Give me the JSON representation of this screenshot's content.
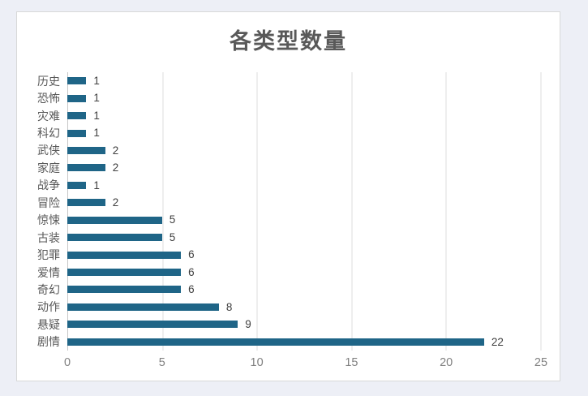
{
  "chart_data": {
    "type": "bar",
    "orientation": "horizontal",
    "title": "各类型数量",
    "categories": [
      "历史",
      "恐怖",
      "灾难",
      "科幻",
      "武侠",
      "家庭",
      "战争",
      "冒险",
      "惊悚",
      "古装",
      "犯罪",
      "爱情",
      "奇幻",
      "动作",
      "悬疑",
      "剧情"
    ],
    "values": [
      1,
      1,
      1,
      1,
      2,
      2,
      1,
      2,
      5,
      5,
      6,
      6,
      6,
      8,
      9,
      22
    ],
    "xlabel": "",
    "ylabel": "",
    "xlim": [
      0,
      25
    ],
    "xticks": [
      0,
      5,
      10,
      15,
      20,
      25
    ],
    "grid": "vertical-lines-on",
    "legend": "none",
    "bar_color": "#1f6587",
    "title_color": "#595959",
    "label_color": "#595959",
    "tick_color": "#808080",
    "value_label_color": "#3f3f3f"
  }
}
